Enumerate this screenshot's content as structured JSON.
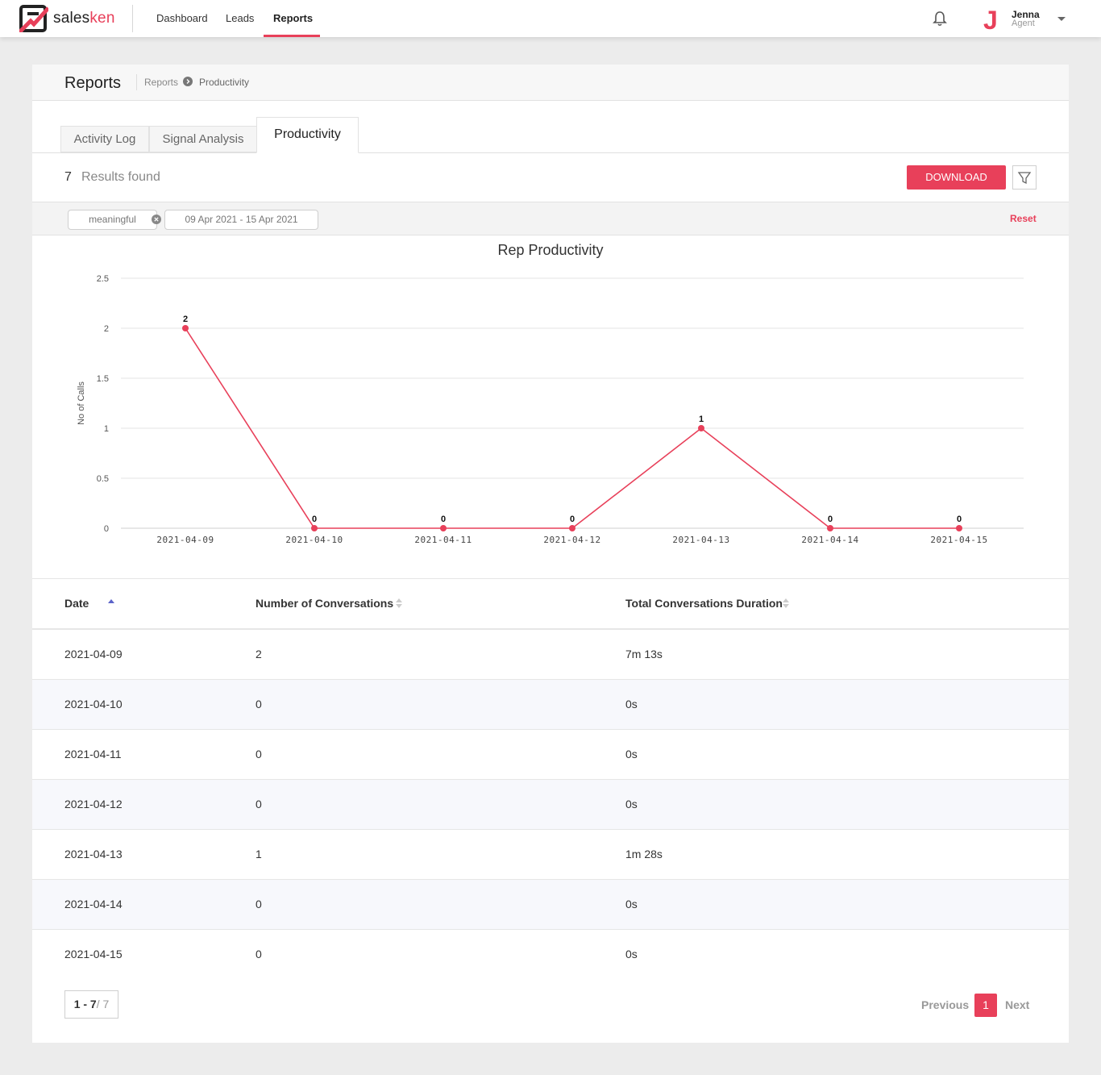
{
  "nav": {
    "brand_prefix": "sales",
    "brand_suffix": "ken",
    "items": [
      "Dashboard",
      "Leads",
      "Reports"
    ],
    "user_name": "Jenna",
    "user_role": "Agent",
    "avatar_letter": "J"
  },
  "header": {
    "title": "Reports",
    "breadcrumb": [
      "Reports",
      "Productivity"
    ]
  },
  "tabs": [
    "Activity Log",
    "Signal Analysis",
    "Productivity"
  ],
  "results": {
    "count": "7",
    "label": "Results found",
    "download": "DOWNLOAD"
  },
  "filters": {
    "chips": [
      "meaningful",
      "09 Apr 2021 - 15 Apr 2021"
    ],
    "reset": "Reset"
  },
  "colors": {
    "accent": "#e8405a"
  },
  "chart_data": {
    "type": "line",
    "title": "Rep Productivity",
    "ylabel": "No of Calls",
    "xlabel": "",
    "categories": [
      "2021-04-09",
      "2021-04-10",
      "2021-04-11",
      "2021-04-12",
      "2021-04-13",
      "2021-04-14",
      "2021-04-15"
    ],
    "values": [
      2,
      0,
      0,
      0,
      1,
      0,
      0
    ],
    "yticks": [
      "0",
      "0.5",
      "1",
      "1.5",
      "2",
      "2.5"
    ],
    "ylim": [
      0,
      2.5
    ],
    "grid": true,
    "data_labels": true,
    "color": "#e8405a"
  },
  "table": {
    "columns": [
      "Date",
      "Number of Conversations",
      "Total Conversations Duration"
    ],
    "rows": [
      [
        "2021-04-09",
        "2",
        "7m 13s"
      ],
      [
        "2021-04-10",
        "0",
        "0s"
      ],
      [
        "2021-04-11",
        "0",
        "0s"
      ],
      [
        "2021-04-12",
        "0",
        "0s"
      ],
      [
        "2021-04-13",
        "1",
        "1m 28s"
      ],
      [
        "2021-04-14",
        "0",
        "0s"
      ],
      [
        "2021-04-15",
        "0",
        "0s"
      ]
    ]
  },
  "pagination": {
    "range": "1 - 7",
    "total": "/ 7",
    "previous": "Previous",
    "current": "1",
    "next": "Next"
  }
}
